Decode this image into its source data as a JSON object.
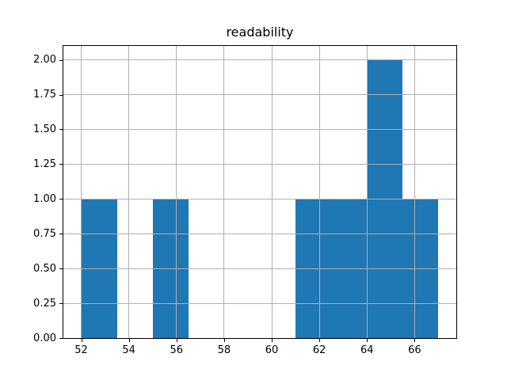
{
  "figure": {
    "background": "#ffffff"
  },
  "chart_data": {
    "type": "bar",
    "subtype": "histogram",
    "title": "readability",
    "xlabel": "",
    "ylabel": "",
    "bin_edges": [
      52,
      53.5,
      55,
      56.5,
      58,
      59.5,
      61,
      62.5,
      64,
      65.5,
      67
    ],
    "counts": [
      1,
      0,
      1,
      0,
      0,
      0,
      1,
      1,
      2,
      1
    ],
    "xlim": [
      51.25,
      67.75
    ],
    "ylim": [
      0,
      2.1
    ],
    "x_ticks": [
      52,
      54,
      56,
      58,
      60,
      62,
      64,
      66
    ],
    "y_ticks": [
      "0.00",
      "0.25",
      "0.50",
      "0.75",
      "1.00",
      "1.25",
      "1.50",
      "1.75",
      "2.00"
    ],
    "grid": true,
    "legend": null,
    "bar_color": "#1f77b4",
    "grid_color": "#b0b0b0",
    "axis_color": "#000000",
    "text_color": "#000000"
  }
}
